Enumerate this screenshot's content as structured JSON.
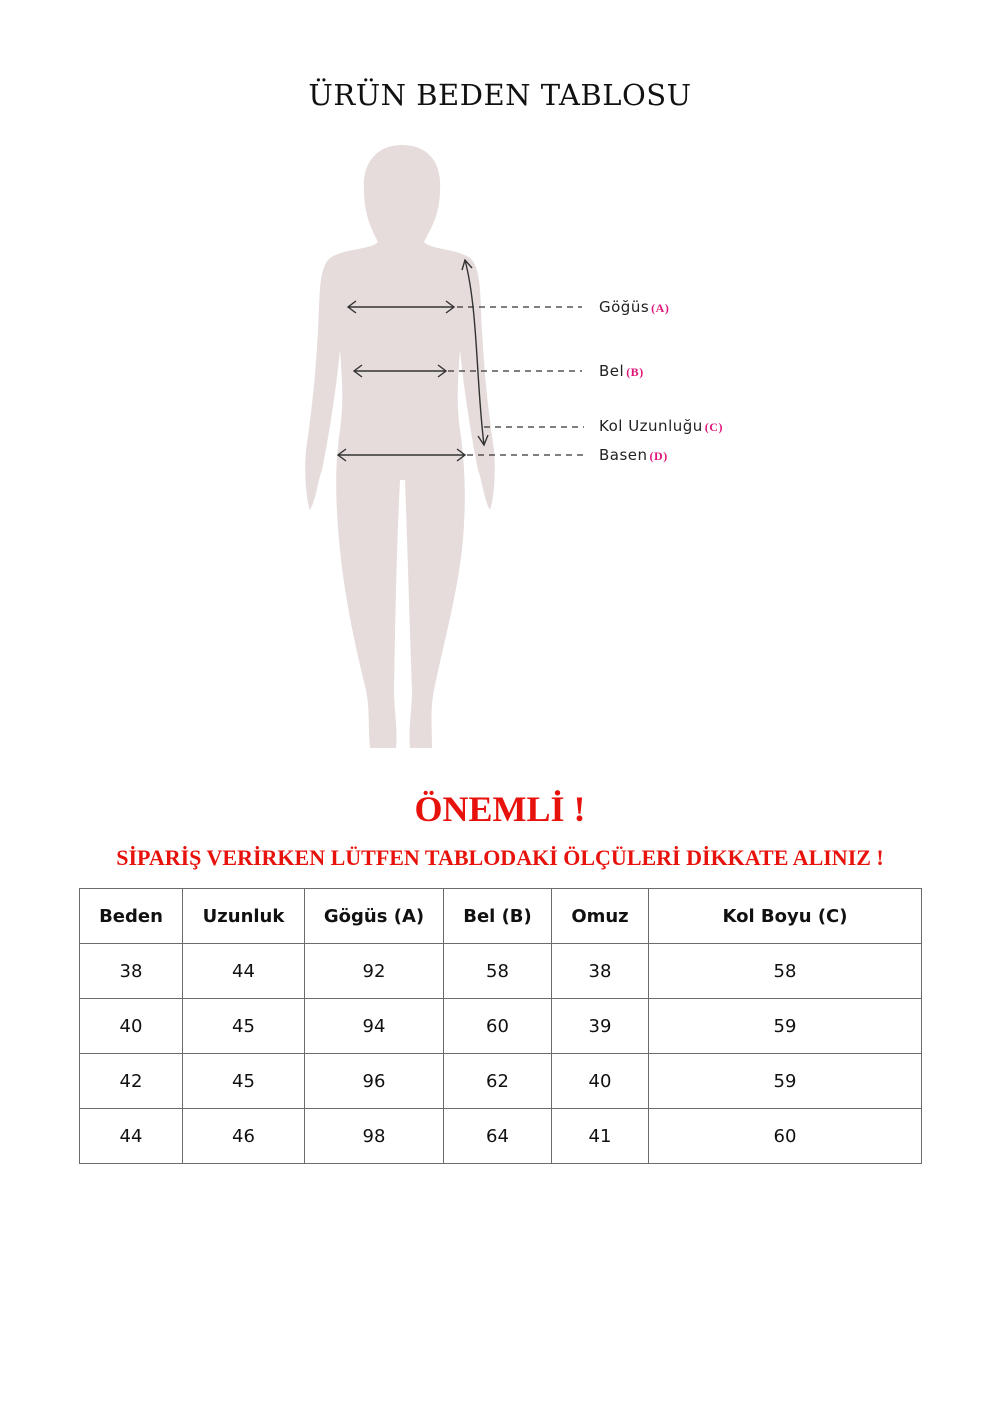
{
  "title": "ÜRÜN BEDEN TABLOSU",
  "measurements": [
    {
      "label": "Göğüs",
      "code": "(A)"
    },
    {
      "label": "Bel",
      "code": "(B)"
    },
    {
      "label": "Kol Uzunluğu",
      "code": "(C)"
    },
    {
      "label": "Basen",
      "code": "(D)"
    }
  ],
  "notice": {
    "heading": "ÖNEMLİ !",
    "text": "SİPARİŞ VERİRKEN LÜTFEN TABLODAKİ ÖLÇÜLERİ DİKKATE ALINIZ !"
  },
  "colors": {
    "accent_red": "#e8120c",
    "code_pink": "#e0157a",
    "silhouette": "#e6dcdc"
  },
  "table": {
    "headers": [
      "Beden",
      "Uzunluk",
      "Gögüs (A)",
      "Bel (B)",
      "Omuz",
      "Kol Boyu (C)"
    ],
    "rows": [
      [
        "38",
        "44",
        "92",
        "58",
        "38",
        "58"
      ],
      [
        "40",
        "45",
        "94",
        "60",
        "39",
        "59"
      ],
      [
        "42",
        "45",
        "96",
        "62",
        "40",
        "59"
      ],
      [
        "44",
        "46",
        "98",
        "64",
        "41",
        "60"
      ]
    ]
  }
}
